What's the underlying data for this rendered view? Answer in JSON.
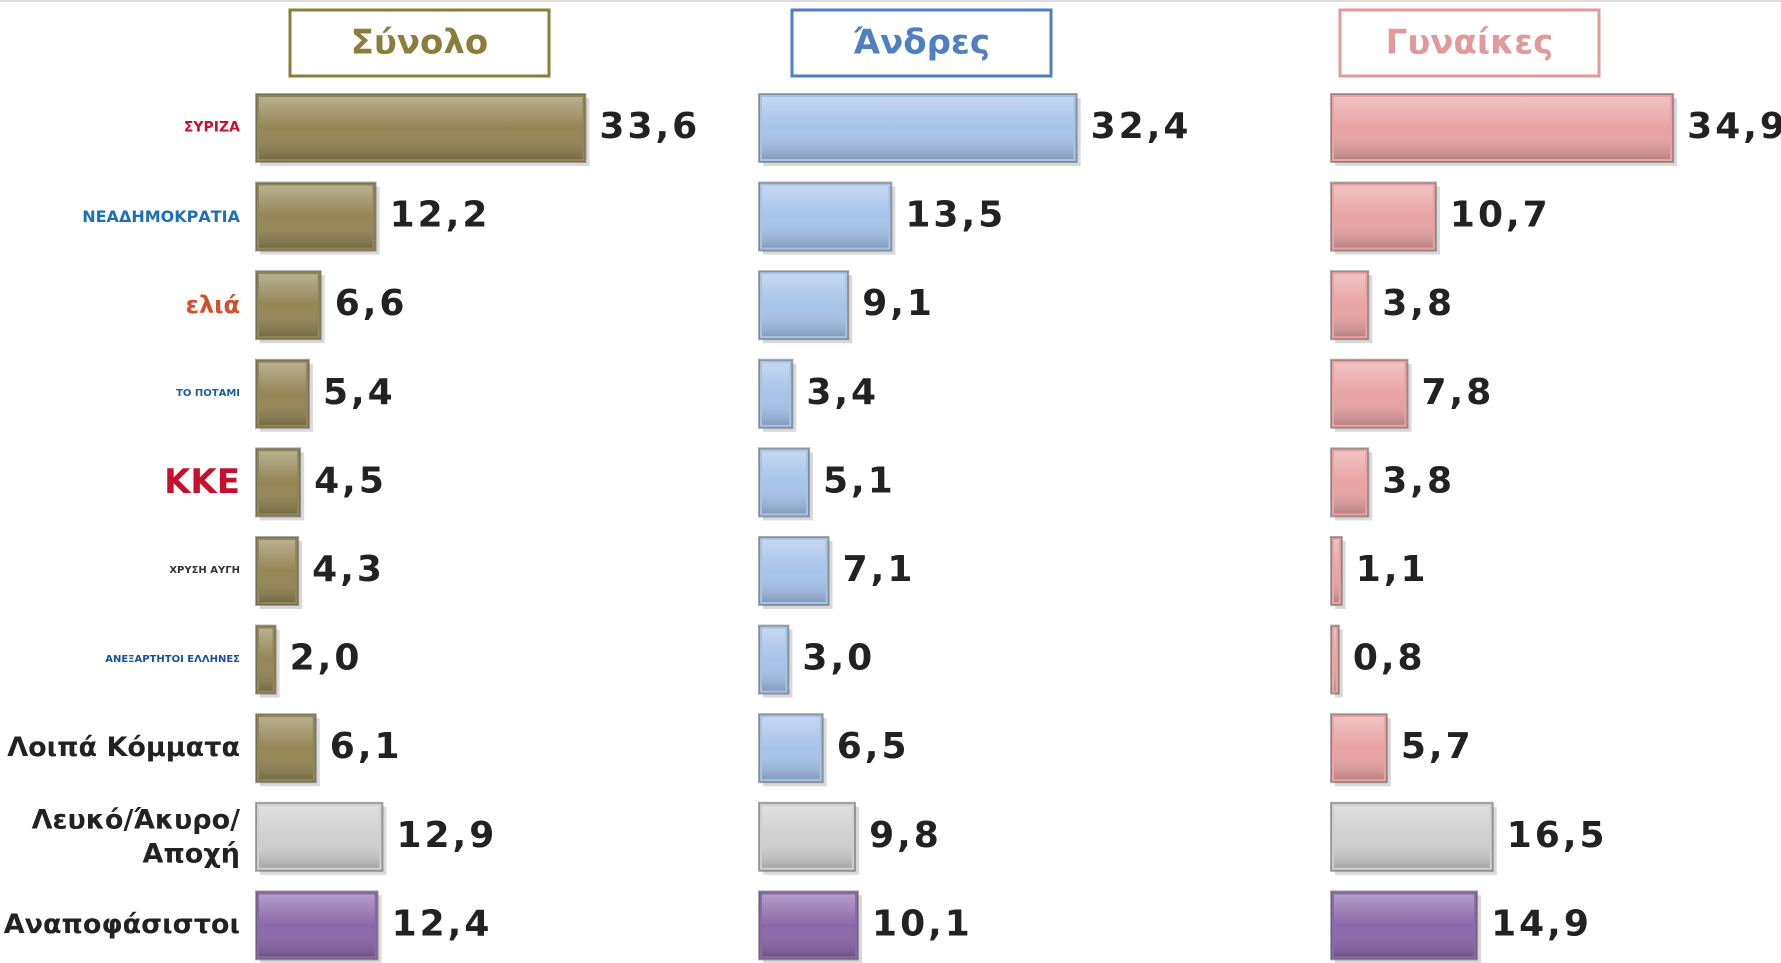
{
  "chart_data": [
    {
      "type": "bar",
      "title": "Σύνολο",
      "title_color": "#8b7d3a",
      "categories": [
        "ΣΥΡΙΖΑ",
        "ΝΕΑΔΗΜΟΚΡΑΤΙΑ",
        "ελιά",
        "ΤΟ ΠΟΤΑΜΙ",
        "ΚΚΕ",
        "ΧΡΥΣΗ ΑΥΓΗ",
        "ΑΝΕΞΑΡΤΗΤΟΙ ΕΛΛΗΝΕΣ",
        "Λοιπά Κόμματα",
        "Λευκό/Άκυρο/\nΑποχή",
        "Αναποφάσιστοι"
      ],
      "values": [
        33.6,
        12.2,
        6.6,
        5.4,
        4.5,
        4.3,
        2.0,
        6.1,
        12.9,
        12.4
      ],
      "value_labels": [
        "33,6",
        "12,2",
        "6,6",
        "5,4",
        "4,5",
        "4,3",
        "2,0",
        "6,1",
        "12,9",
        "12,4"
      ],
      "colors": [
        "#938655",
        "#938655",
        "#938655",
        "#938655",
        "#938655",
        "#938655",
        "#938655",
        "#938655",
        "#cfcfcf",
        "#8a69aa"
      ]
    },
    {
      "type": "bar",
      "title": "Άνδρες",
      "title_color": "#4f7fc0",
      "values": [
        32.4,
        13.5,
        9.1,
        3.4,
        5.1,
        7.1,
        3.0,
        6.5,
        9.8,
        10.1
      ],
      "value_labels": [
        "32,4",
        "13,5",
        "9,1",
        "3,4",
        "5,1",
        "7,1",
        "3,0",
        "6,5",
        "9,8",
        "10,1"
      ],
      "colors": [
        "#a6c3e9",
        "#a6c3e9",
        "#a6c3e9",
        "#a6c3e9",
        "#a6c3e9",
        "#a6c3e9",
        "#a6c3e9",
        "#a6c3e9",
        "#cfcfcf",
        "#8a69aa"
      ]
    },
    {
      "type": "bar",
      "title": "Γυναίκες",
      "title_color": "#e09a9a",
      "values": [
        34.9,
        10.7,
        3.8,
        7.8,
        3.8,
        1.1,
        0.8,
        5.7,
        16.5,
        14.9
      ],
      "value_labels": [
        "34,9",
        "10,7",
        "3,8",
        "7,8",
        "3,8",
        "1,1",
        "0,8",
        "5,7",
        "16,5",
        "14,9"
      ],
      "colors": [
        "#e9a3a3",
        "#e9a3a3",
        "#e9a3a3",
        "#e9a3a3",
        "#e9a3a3",
        "#e9a3a3",
        "#e9a3a3",
        "#e9a3a3",
        "#cfcfcf",
        "#8a69aa"
      ]
    }
  ]
}
